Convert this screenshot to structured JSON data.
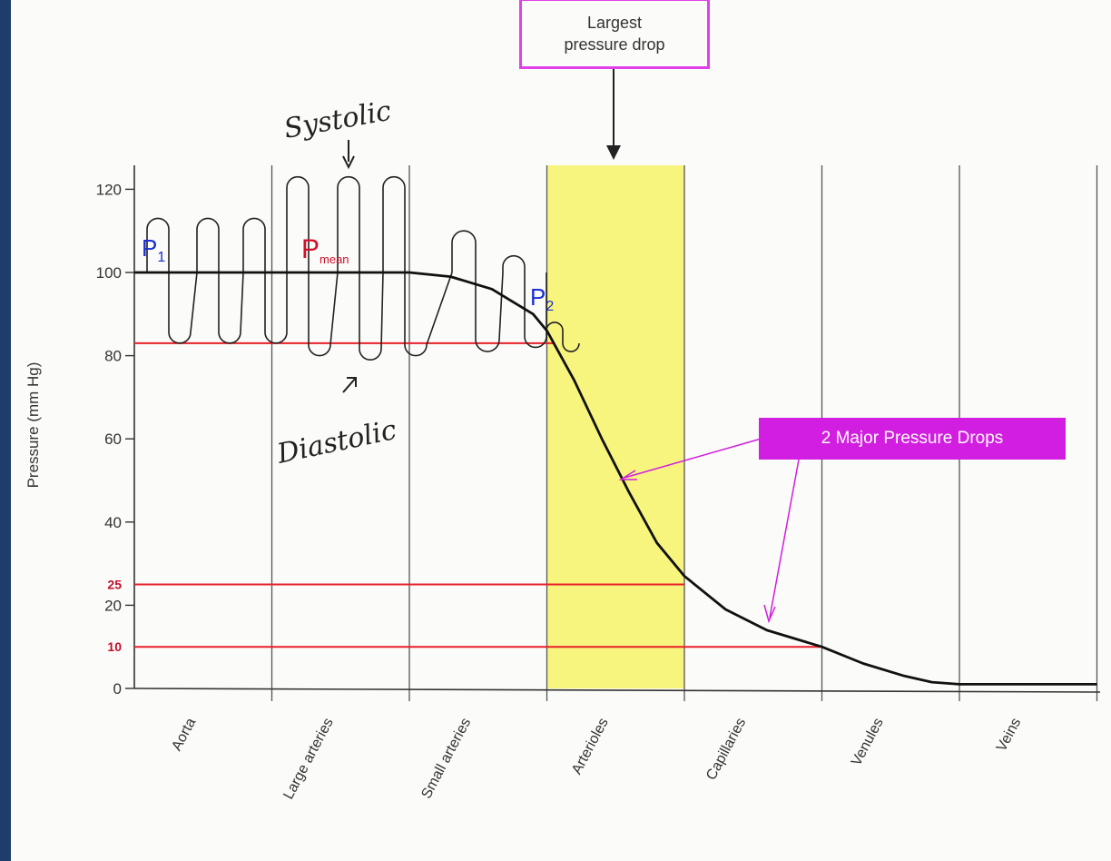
{
  "chart_data": {
    "type": "line",
    "ylabel": "Pressure (mm Hg)",
    "ylim": [
      0,
      125
    ],
    "yticks": [
      "0",
      "20",
      "40",
      "60",
      "80",
      "100",
      "120"
    ],
    "categories": [
      "Aorta",
      "Large arteries",
      "Small arteries",
      "Arterioles",
      "Capillaries",
      "Venules",
      "Veins"
    ],
    "series": [
      {
        "values_x": [
          0,
          0.5,
          1.0,
          1.5,
          1.8,
          2.0,
          2.3,
          2.6,
          2.9,
          3.0,
          3.2,
          3.4,
          3.6,
          3.8,
          4.0,
          4.3,
          4.6,
          5.0,
          5.3,
          5.6,
          5.8,
          6.0,
          6.5,
          7.0
        ],
        "values_y": [
          100,
          100,
          100,
          100,
          100,
          100,
          99,
          96,
          90,
          86,
          74,
          60,
          47,
          35,
          27,
          19,
          14,
          10,
          6,
          3,
          1.5,
          1,
          1,
          1
        ]
      }
    ],
    "pulse_waves": {
      "max": [
        113,
        113,
        113,
        123,
        123,
        123,
        110,
        104,
        88
      ],
      "min": [
        83,
        83,
        83,
        80,
        79,
        80,
        81,
        82,
        81
      ]
    },
    "reference_lines": [
      {
        "label": "25",
        "y": 25
      },
      {
        "label": "10",
        "y": 10
      },
      {
        "y": 83
      }
    ],
    "highlight_region": {
      "from_category": "Arterioles",
      "color": "#f7f36a"
    }
  },
  "annotations": {
    "largest_drop_line1": "Largest",
    "largest_drop_line2": "pressure drop",
    "major_drops": "2 Major Pressure Drops",
    "systolic": "Systolic",
    "diastolic": "Diastolic",
    "p1": "P",
    "p1_sub": "1",
    "p2": "P",
    "p2_sub": "2",
    "pmean": "P",
    "pmean_sub": "mean"
  },
  "colors": {
    "curve": "#111111",
    "reference": "#e8202a",
    "highlight": "#f7f36a",
    "accent": "#d21ee0",
    "label_blue": "#1a2fd0",
    "label_red": "#d0102a"
  }
}
